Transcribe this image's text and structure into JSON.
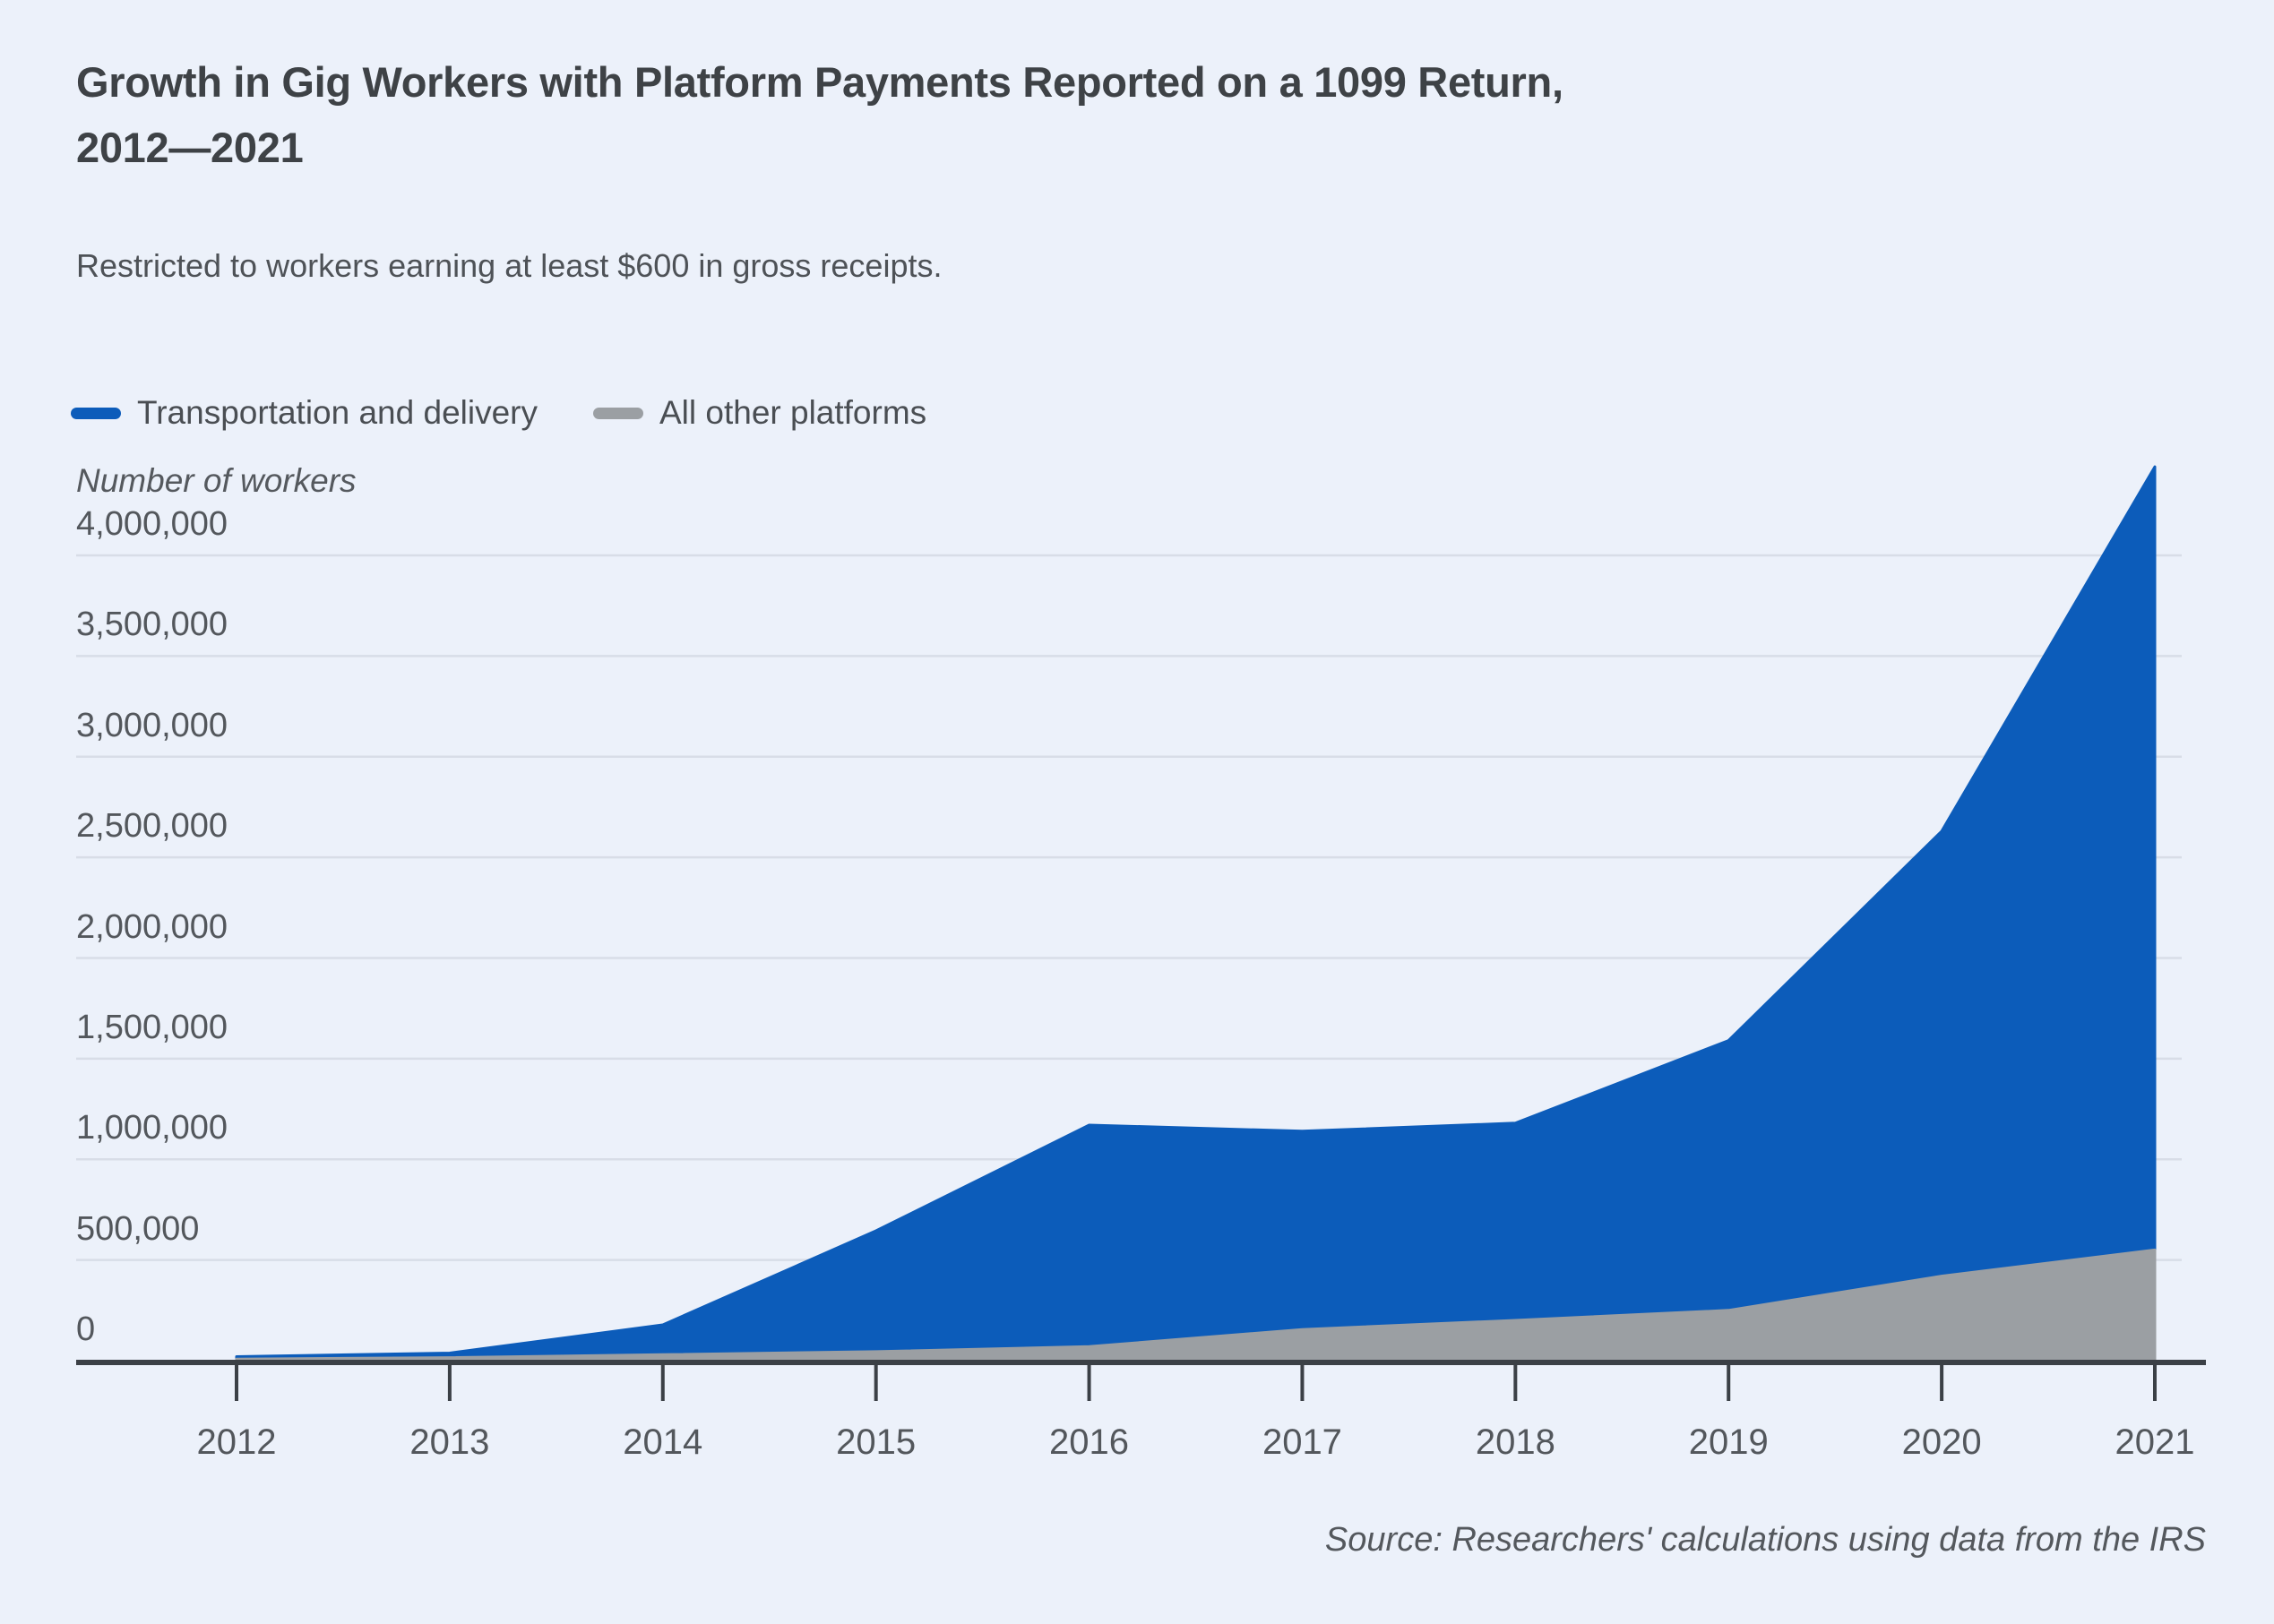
{
  "page": {
    "title": "Growth in Gig Workers with Platform Payments Reported on a 1099 Return,\n2012—2021",
    "subtitle": "Restricted to workers earning at least $600 in gross receipts.",
    "source": "Source: Researchers' calculations using data from the IRS",
    "background_color": "#ecf1fa"
  },
  "legend": {
    "position": "top-left",
    "items": [
      {
        "label": "Transportation and delivery",
        "color": "#0c5cba"
      },
      {
        "label": "All other platforms",
        "color": "#9b9fa3"
      }
    ]
  },
  "chart_data": {
    "type": "area",
    "stacked": true,
    "title": "Growth in Gig Workers with Platform Payments Reported on a 1099 Return, 2012—2021",
    "subtitle": "Restricted to workers earning at least $600 in gross receipts.",
    "xlabel": "",
    "ylabel": "Number of workers",
    "x": [
      2012,
      2013,
      2014,
      2015,
      2016,
      2017,
      2018,
      2019,
      2020,
      2021
    ],
    "series": [
      {
        "name": "All other platforms",
        "color": "#9b9fa3",
        "stack_position": "bottom",
        "values": [
          8000,
          15000,
          30000,
          45000,
          70000,
          155000,
          200000,
          250000,
          420000,
          550000
        ]
      },
      {
        "name": "Transportation and delivery",
        "color": "#0c5cba",
        "stack_position": "top",
        "values": [
          12000,
          23000,
          148000,
          600000,
          1100000,
          985000,
          980000,
          1340000,
          2210000,
          3890000
        ]
      }
    ],
    "stacked_totals": [
      20000,
      38000,
      178000,
      645000,
      1170000,
      1140000,
      1180000,
      1590000,
      2630000,
      4440000
    ],
    "ylim": [
      0,
      4000000
    ],
    "ytick_interval": 500000,
    "yticks": [
      0,
      500000,
      1000000,
      1500000,
      2000000,
      2500000,
      3000000,
      3500000,
      4000000
    ],
    "ytick_labels": [
      "0",
      "500,000",
      "1,000,000",
      "1,500,000",
      "2,000,000",
      "2,500,000",
      "3,000,000",
      "3,500,000",
      "4,000,000"
    ],
    "xtick_labels": [
      "2012",
      "2013",
      "2014",
      "2015",
      "2016",
      "2017",
      "2018",
      "2019",
      "2020",
      "2021"
    ],
    "grid": "horizontal",
    "gridline_color": "#d8dde7",
    "axis_color": "#3b4046",
    "legend_position": "top-left"
  }
}
